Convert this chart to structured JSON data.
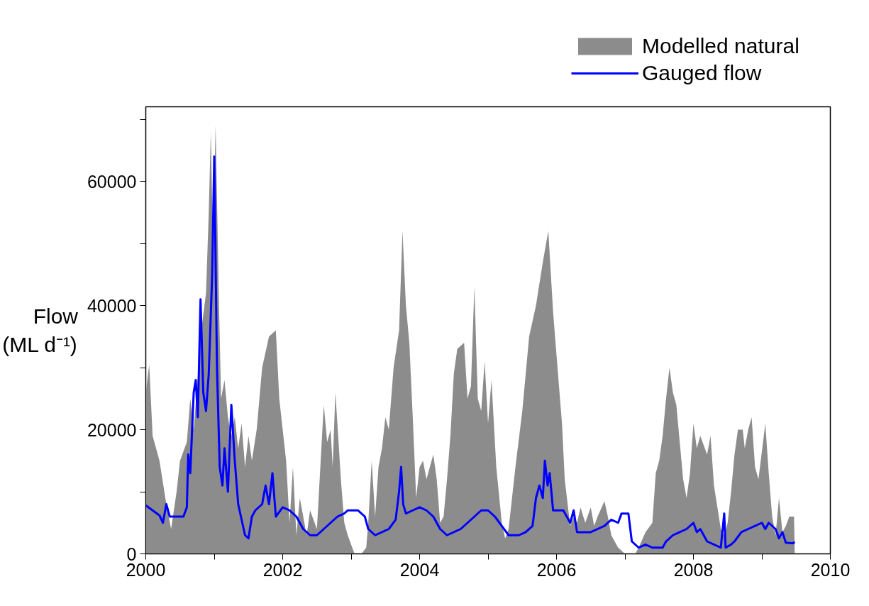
{
  "chart_data": {
    "type": "area",
    "ylabel": "Flow (ML d⁻¹)",
    "xlim": [
      2000,
      2010
    ],
    "ylim": [
      0,
      72000
    ],
    "xticks": [
      2000,
      {
        "value": 2001,
        "label": null
      },
      2002,
      {
        "value": 2003,
        "label": null
      },
      2004,
      {
        "value": 2005,
        "label": null
      },
      2006,
      {
        "value": 2007,
        "label": null
      },
      2008,
      {
        "value": 2009,
        "label": null
      },
      2010
    ],
    "yticks": [
      0,
      {
        "value": 10000,
        "label": null
      },
      20000,
      {
        "value": 30000,
        "label": null
      },
      40000,
      {
        "value": 50000,
        "label": null
      },
      60000,
      {
        "value": 70000,
        "label": null
      }
    ],
    "grid": false,
    "legend": "top right",
    "series": [
      {
        "name": "Modelled natural",
        "color": "#8c8c8c",
        "x": [
          2000.0,
          2000.05,
          2000.1,
          2000.2,
          2000.3,
          2000.37,
          2000.45,
          2000.5,
          2000.6,
          2000.65,
          2000.7,
          2000.75,
          2000.8,
          2000.88,
          2000.92,
          2000.95,
          2000.98,
          2001.02,
          2001.07,
          2001.1,
          2001.15,
          2001.2,
          2001.25,
          2001.3,
          2001.35,
          2001.4,
          2001.45,
          2001.5,
          2001.55,
          2001.62,
          2001.7,
          2001.8,
          2001.9,
          2001.95,
          2002.05,
          2002.1,
          2002.15,
          2002.2,
          2002.25,
          2002.35,
          2002.4,
          2002.5,
          2002.55,
          2002.6,
          2002.65,
          2002.7,
          2002.73,
          2002.77,
          2002.85,
          2002.9,
          2002.95,
          2003.0,
          2003.05,
          2003.15,
          2003.22,
          2003.25,
          2003.3,
          2003.35,
          2003.4,
          2003.45,
          2003.5,
          2003.55,
          2003.62,
          2003.7,
          2003.75,
          2003.8,
          2003.85,
          2003.9,
          2003.95,
          2004.0,
          2004.05,
          2004.1,
          2004.15,
          2004.2,
          2004.25,
          2004.3,
          2004.35,
          2004.4,
          2004.45,
          2004.5,
          2004.55,
          2004.65,
          2004.7,
          2004.75,
          2004.8,
          2004.85,
          2004.9,
          2004.95,
          2005.0,
          2005.05,
          2005.12,
          2005.2,
          2005.25,
          2005.3,
          2005.4,
          2005.5,
          2005.6,
          2005.7,
          2005.8,
          2005.88,
          2005.95,
          2006.0,
          2006.08,
          2006.12,
          2006.2,
          2006.25,
          2006.3,
          2006.35,
          2006.42,
          2006.5,
          2006.55,
          2006.6,
          2006.7,
          2006.75,
          2006.8,
          2006.9,
          2007.0,
          2007.15,
          2007.2,
          2007.3,
          2007.4,
          2007.45,
          2007.5,
          2007.55,
          2007.6,
          2007.65,
          2007.7,
          2007.75,
          2007.8,
          2007.85,
          2007.9,
          2007.95,
          2008.0,
          2008.05,
          2008.1,
          2008.2,
          2008.25,
          2008.3,
          2008.4,
          2008.45,
          2008.5,
          2008.55,
          2008.6,
          2008.65,
          2008.72,
          2008.75,
          2008.8,
          2008.85,
          2008.9,
          2008.95,
          2009.05,
          2009.1,
          2009.15,
          2009.2,
          2009.25,
          2009.3,
          2009.35,
          2009.4,
          2009.47,
          2009.48
        ],
        "values": [
          26000,
          30500,
          19000,
          15000,
          8000,
          4000,
          10000,
          15000,
          18000,
          25000,
          20000,
          27000,
          35000,
          42000,
          55000,
          68000,
          50000,
          69000,
          40000,
          25000,
          28000,
          22000,
          19000,
          22000,
          17000,
          21000,
          14000,
          19000,
          15000,
          20000,
          30000,
          35000,
          36000,
          25000,
          15000,
          5000,
          14000,
          3000,
          9000,
          3000,
          7000,
          4000,
          14000,
          24000,
          18000,
          20000,
          14000,
          26000,
          12000,
          5000,
          3000,
          1500,
          0,
          0,
          1000,
          5000,
          15000,
          6000,
          14000,
          17000,
          22000,
          20000,
          30000,
          36000,
          52000,
          40000,
          34000,
          22000,
          9000,
          14000,
          15000,
          12000,
          14000,
          16000,
          12000,
          5000,
          6000,
          12000,
          19000,
          29000,
          33000,
          34000,
          25000,
          27000,
          43000,
          25000,
          23000,
          31000,
          21000,
          28000,
          14000,
          5000,
          2500,
          4000,
          14000,
          23000,
          35000,
          40000,
          47000,
          52000,
          39000,
          32000,
          21000,
          12000,
          4500,
          6000,
          5000,
          7500,
          5000,
          7500,
          4500,
          6000,
          8500,
          6000,
          3000,
          1000,
          0,
          0,
          1000,
          3500,
          5000,
          13000,
          15000,
          19000,
          25000,
          30000,
          26000,
          24000,
          18000,
          12000,
          9000,
          13000,
          21000,
          17000,
          19000,
          16000,
          19000,
          11000,
          4000,
          3000,
          5000,
          10000,
          16000,
          20000,
          20000,
          17000,
          20000,
          22000,
          14000,
          12000,
          21000,
          13000,
          6000,
          3000,
          9000,
          3500,
          4500,
          6000,
          6000,
          0
        ]
      },
      {
        "name": "Gauged flow",
        "type": "line",
        "color": "#0000ff",
        "x": [
          2000.0,
          2000.1,
          2000.2,
          2000.25,
          2000.3,
          2000.35,
          2000.45,
          2000.55,
          2000.6,
          2000.62,
          2000.65,
          2000.7,
          2000.73,
          2000.76,
          2000.8,
          2000.84,
          2000.88,
          2000.92,
          2000.97,
          2001.0,
          2001.04,
          2001.08,
          2001.12,
          2001.15,
          2001.2,
          2001.25,
          2001.3,
          2001.35,
          2001.45,
          2001.5,
          2001.55,
          2001.6,
          2001.7,
          2001.75,
          2001.8,
          2001.85,
          2001.9,
          2002.0,
          2002.1,
          2002.2,
          2002.3,
          2002.4,
          2002.5,
          2002.6,
          2002.7,
          2002.8,
          2002.9,
          2002.95,
          2003.1,
          2003.2,
          2003.25,
          2003.35,
          2003.45,
          2003.55,
          2003.65,
          2003.7,
          2003.73,
          2003.76,
          2003.8,
          2003.9,
          2004.0,
          2004.1,
          2004.2,
          2004.3,
          2004.4,
          2004.5,
          2004.6,
          2004.7,
          2004.8,
          2004.9,
          2005.0,
          2005.1,
          2005.2,
          2005.3,
          2005.45,
          2005.55,
          2005.65,
          2005.7,
          2005.75,
          2005.8,
          2005.83,
          2005.87,
          2005.9,
          2005.95,
          2006.1,
          2006.2,
          2006.25,
          2006.3,
          2006.5,
          2006.6,
          2006.7,
          2006.8,
          2006.9,
          2006.95,
          2007.05,
          2007.1,
          2007.2,
          2007.3,
          2007.4,
          2007.55,
          2007.6,
          2007.7,
          2007.8,
          2007.9,
          2008.0,
          2008.05,
          2008.1,
          2008.2,
          2008.3,
          2008.4,
          2008.45,
          2008.47,
          2008.55,
          2008.6,
          2008.7,
          2008.8,
          2008.9,
          2009.0,
          2009.05,
          2009.1,
          2009.2,
          2009.25,
          2009.3,
          2009.35,
          2009.45,
          2009.48
        ],
        "values": [
          7800,
          7000,
          6200,
          5000,
          8000,
          6000,
          6000,
          6000,
          7500,
          16000,
          13000,
          26000,
          28000,
          22000,
          41000,
          26000,
          23000,
          29000,
          45000,
          64000,
          30000,
          14000,
          11000,
          17000,
          10000,
          24000,
          15000,
          8000,
          3000,
          2500,
          6000,
          7000,
          8000,
          11000,
          8000,
          13000,
          6000,
          7500,
          7000,
          6000,
          4000,
          3000,
          3000,
          4000,
          5000,
          6000,
          6500,
          7000,
          7000,
          6000,
          4000,
          3000,
          3500,
          4000,
          5500,
          10000,
          14000,
          8000,
          6500,
          7000,
          7500,
          7000,
          6000,
          4000,
          3000,
          3500,
          4000,
          5000,
          6000,
          7000,
          7000,
          6000,
          4500,
          3000,
          3000,
          3500,
          4500,
          9000,
          11000,
          9000,
          15000,
          11000,
          13000,
          7000,
          7000,
          5000,
          7000,
          3500,
          3500,
          4000,
          4500,
          5500,
          5000,
          6500,
          6500,
          2000,
          1000,
          1500,
          1000,
          1000,
          2000,
          3000,
          3500,
          4000,
          5000,
          3500,
          4000,
          2000,
          1500,
          1000,
          6500,
          1000,
          1500,
          2000,
          3500,
          4000,
          4500,
          5000,
          4000,
          5000,
          4000,
          2500,
          3500,
          1800,
          1700,
          1900
        ]
      }
    ]
  }
}
